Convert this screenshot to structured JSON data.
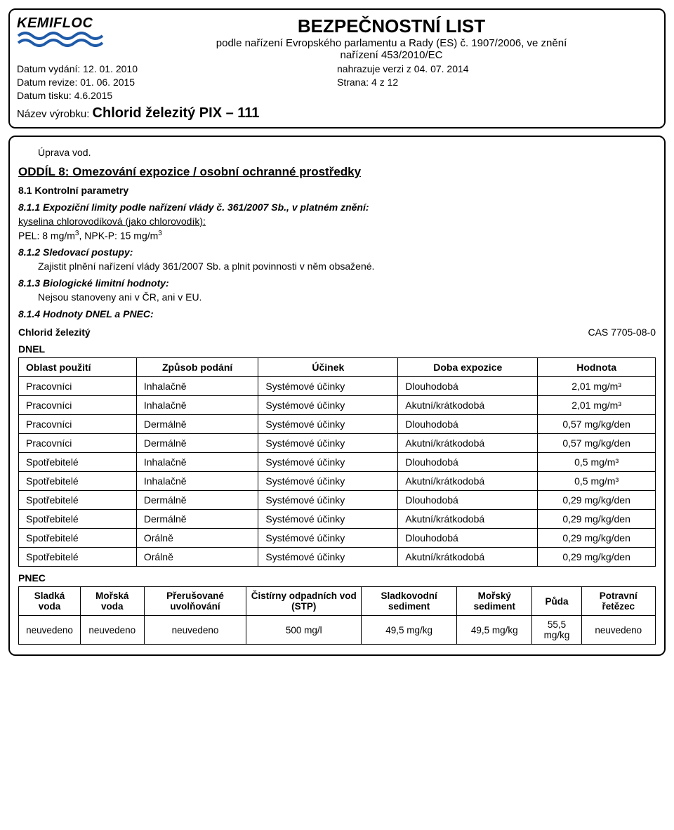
{
  "header": {
    "logo_text": "KEMIFLOC",
    "main_title": "BEZPEČNOSTNÍ LIST",
    "sub_title_line1": "podle nařízení Evropského parlamentu a Rady (ES) č. 1907/2006, ve znění",
    "sub_title_line2": "nařízení 453/2010/EC",
    "date_issued_label": "Datum vydání: 12. 01. 2010",
    "date_revision_label": "Datum revize: 01. 06. 2015",
    "date_print_label": "Datum tisku: 4.6.2015",
    "replaces_label": "nahrazuje verzi z 04. 07. 2014",
    "page_label": "Strana: 4 z 12",
    "product_label": "Název výrobku:  ",
    "product_name": "Chlorid železitý PIX – 111"
  },
  "body": {
    "top_line": "Úprava vod.",
    "section8_heading": "ODDÍL 8: Omezování expozice / osobní ochranné prostředky",
    "s81": "8.1 Kontrolní parametry",
    "s811": "8.1.1 Expoziční limity podle nařízení vlády č. 361/2007 Sb., v platném znění:",
    "s811_chem": "kyselina chlorovodíková (jako chlorovodík):",
    "s811_values_a": "PEL: 8 mg/m",
    "s811_values_b": ", NPK-P: 15 mg/m",
    "s812": "8.1.2 Sledovací postupy:",
    "s812_text": "Zajistit plnění nařízení vlády 361/2007 Sb. a plnit povinnosti v něm obsažené.",
    "s813": "8.1.3 Biologické limitní hodnoty:",
    "s813_text": "Nejsou stanoveny ani v ČR, ani v EU.",
    "s814": "8.1.4 Hodnoty DNEL a PNEC:",
    "dnel_left": "Chlorid železitý",
    "dnel_right": "CAS 7705-08-0",
    "dnel_label": "DNEL",
    "pnec_label": "PNEC",
    "dnel_headers": [
      "Oblast použití",
      "Způsob podání",
      "Účinek",
      "Doba expozice",
      "Hodnota"
    ],
    "dnel_rows": [
      [
        "Pracovníci",
        "Inhalačně",
        "Systémové účinky",
        "Dlouhodobá",
        "2,01 mg/m³"
      ],
      [
        "Pracovníci",
        "Inhalačně",
        "Systémové účinky",
        "Akutní/krátkodobá",
        "2,01 mg/m³"
      ],
      [
        "Pracovníci",
        "Dermálně",
        "Systémové účinky",
        "Dlouhodobá",
        "0,57 mg/kg/den"
      ],
      [
        "Pracovníci",
        "Dermálně",
        "Systémové účinky",
        "Akutní/krátkodobá",
        "0,57 mg/kg/den"
      ],
      [
        "Spotřebitelé",
        "Inhalačně",
        "Systémové účinky",
        "Dlouhodobá",
        "0,5 mg/m³"
      ],
      [
        "Spotřebitelé",
        "Inhalačně",
        "Systémové účinky",
        "Akutní/krátkodobá",
        "0,5 mg/m³"
      ],
      [
        "Spotřebitelé",
        "Dermálně",
        "Systémové účinky",
        "Dlouhodobá",
        "0,29 mg/kg/den"
      ],
      [
        "Spotřebitelé",
        "Dermálně",
        "Systémové účinky",
        "Akutní/krátkodobá",
        "0,29 mg/kg/den"
      ],
      [
        "Spotřebitelé",
        "Orálně",
        "Systémové účinky",
        "Dlouhodobá",
        "0,29 mg/kg/den"
      ],
      [
        "Spotřebitelé",
        "Orálně",
        "Systémové účinky",
        "Akutní/krátkodobá",
        "0,29 mg/kg/den"
      ]
    ],
    "pnec_headers": [
      "Sladká voda",
      "Mořská voda",
      "Přerušované uvolňování",
      "Čistírny odpadních vod (STP)",
      "Sladkovodní sediment",
      "Mořský sediment",
      "Půda",
      "Potravní řetězec"
    ],
    "pnec_row": [
      "neuvedeno",
      "neuvedeno",
      "neuvedeno",
      "500 mg/l",
      "49,5 mg/kg",
      "49,5 mg/kg",
      "55,5 mg/kg",
      "neuvedeno"
    ]
  },
  "colors": {
    "wave": "#1e5aa8"
  }
}
